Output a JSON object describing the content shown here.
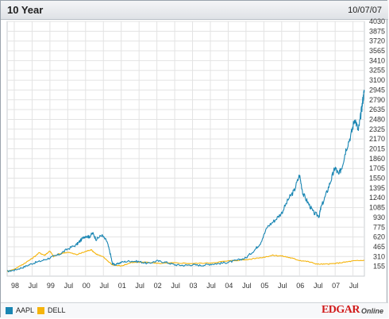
{
  "header": {
    "title": "10 Year",
    "date": "10/07/07"
  },
  "brand": {
    "name": "EDGAR",
    "suffix": "Online"
  },
  "colors": {
    "aapl": "#1a86b3",
    "dell": "#f5b40c",
    "grid": "#e3e3e3"
  },
  "chart_data": {
    "type": "line",
    "title": "10 Year",
    "legend_position": "bottom-left",
    "grid": true,
    "ylim": [
      0,
      4030
    ],
    "xlim": [
      1997.8,
      2007.82
    ],
    "y_ticks": [
      155,
      310,
      465,
      620,
      775,
      930,
      1085,
      1240,
      1395,
      1550,
      1705,
      1860,
      2015,
      2170,
      2325,
      2480,
      2635,
      2790,
      2945,
      3100,
      3255,
      3410,
      3565,
      3720,
      3875,
      4030
    ],
    "x_tick_labels": [
      {
        "x": 1998.0,
        "label": "98"
      },
      {
        "x": 1998.5,
        "label": "Jul"
      },
      {
        "x": 1999.0,
        "label": "99"
      },
      {
        "x": 1999.5,
        "label": "Jul"
      },
      {
        "x": 2000.0,
        "label": "00"
      },
      {
        "x": 2000.5,
        "label": "Jul"
      },
      {
        "x": 2001.0,
        "label": "01"
      },
      {
        "x": 2001.5,
        "label": "Jul"
      },
      {
        "x": 2002.0,
        "label": "02"
      },
      {
        "x": 2002.5,
        "label": "Jul"
      },
      {
        "x": 2003.0,
        "label": "03"
      },
      {
        "x": 2003.5,
        "label": "Jul"
      },
      {
        "x": 2004.0,
        "label": "04"
      },
      {
        "x": 2004.5,
        "label": "Jul"
      },
      {
        "x": 2005.0,
        "label": "05"
      },
      {
        "x": 2005.5,
        "label": "Jul"
      },
      {
        "x": 2006.0,
        "label": "06"
      },
      {
        "x": 2006.5,
        "label": "Jul"
      },
      {
        "x": 2007.0,
        "label": "07"
      },
      {
        "x": 2007.5,
        "label": "Jul"
      }
    ],
    "series": [
      {
        "name": "AAPL",
        "x": [
          1997.8,
          1998.0,
          1998.25,
          1998.5,
          1998.75,
          1999.0,
          1999.25,
          1999.5,
          1999.75,
          1999.85,
          2000.0,
          2000.1,
          2000.2,
          2000.3,
          2000.45,
          2000.6,
          2000.7,
          2000.75,
          2000.85,
          2001.0,
          2001.25,
          2001.5,
          2001.75,
          2002.0,
          2002.25,
          2002.5,
          2002.75,
          2003.0,
          2003.25,
          2003.5,
          2003.75,
          2004.0,
          2004.25,
          2004.5,
          2004.75,
          2004.9,
          2005.1,
          2005.3,
          2005.5,
          2005.7,
          2005.85,
          2006.0,
          2006.1,
          2006.25,
          2006.4,
          2006.55,
          2006.6,
          2006.75,
          2006.9,
          2007.0,
          2007.1,
          2007.2,
          2007.3,
          2007.45,
          2007.55,
          2007.65,
          2007.72,
          2007.78,
          2007.82
        ],
        "values": [
          75,
          95,
          140,
          200,
          240,
          290,
          340,
          430,
          500,
          560,
          640,
          620,
          680,
          580,
          650,
          550,
          340,
          200,
          180,
          220,
          240,
          230,
          200,
          240,
          220,
          180,
          170,
          180,
          170,
          190,
          200,
          220,
          250,
          290,
          420,
          520,
          780,
          880,
          1000,
          1230,
          1350,
          1600,
          1300,
          1150,
          1000,
          950,
          1080,
          1300,
          1550,
          1720,
          1600,
          1750,
          2000,
          2250,
          2500,
          2300,
          2550,
          2800,
          2945
        ]
      },
      {
        "name": "DELL",
        "x": [
          1997.8,
          1998.0,
          1998.25,
          1998.5,
          1998.7,
          1998.85,
          1999.0,
          1999.1,
          1999.25,
          1999.5,
          1999.75,
          2000.0,
          2000.15,
          2000.3,
          2000.5,
          2000.75,
          2001.0,
          2001.25,
          2001.5,
          2001.75,
          2002.0,
          2002.5,
          2003.0,
          2003.5,
          2004.0,
          2004.5,
          2005.0,
          2005.25,
          2005.5,
          2005.75,
          2006.0,
          2006.25,
          2006.5,
          2006.75,
          2007.0,
          2007.25,
          2007.5,
          2007.82
        ],
        "values": [
          75,
          110,
          190,
          280,
          370,
          330,
          400,
          310,
          350,
          380,
          340,
          390,
          420,
          350,
          300,
          180,
          160,
          210,
          220,
          220,
          200,
          210,
          200,
          210,
          240,
          260,
          300,
          330,
          320,
          290,
          250,
          230,
          190,
          190,
          200,
          220,
          240,
          250
        ]
      }
    ]
  }
}
